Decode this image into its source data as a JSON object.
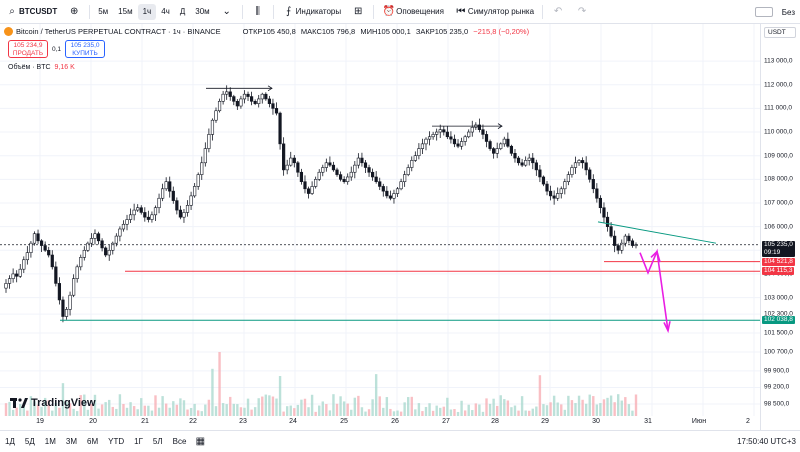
{
  "toolbar": {
    "symbol": "BTCUSDT",
    "intervals": [
      "5м",
      "15м",
      "1ч",
      "4ч",
      "Д",
      "30м"
    ],
    "active_interval": "1ч",
    "indicators_label": "Индикаторы",
    "alerts_label": "Оповещения",
    "replay_label": "Симулятор рынка",
    "right_label": "Без"
  },
  "legend": {
    "title": "Bitcoin / TetherUS PERPETUAL CONTRACT · 1ч · BINANCE",
    "open": "ОТКР105 450,8",
    "high": "МАКС105 796,8",
    "low": "МИН105 000,1",
    "close": "ЗАКР105 235,0",
    "change": "−215,8 (−0,20%)"
  },
  "trade": {
    "sell_price": "105 234,9",
    "sell_label": "ПРОДАТЬ",
    "spread": "0,1",
    "buy_price": "105 235,0",
    "buy_label": "КУПИТЬ"
  },
  "volume": {
    "label": "Объём · BTC",
    "value": "9,16 K"
  },
  "logo_text": "TradingView",
  "price_axis": {
    "currency": "USDT",
    "ticks": [
      "113 000,0",
      "112 000,0",
      "111 000,0",
      "110 000,0",
      "109 000,0",
      "108 000,0",
      "107 000,0",
      "106 000,0",
      "105 000,0",
      "104 000,0",
      "103 000,0",
      "102 300,0",
      "101 500,0",
      "100 700,0",
      "99 900,0",
      "99 200,0",
      "98 500,0"
    ],
    "current_price": "105 235,0",
    "countdown": "09:19",
    "tag_red_1": "104 521,8",
    "tag_red_2": "104 115,3",
    "tag_green": "102 038,8"
  },
  "time_axis": [
    "19",
    "20",
    "21",
    "22",
    "23",
    "24",
    "25",
    "26",
    "27",
    "28",
    "29",
    "30",
    "31",
    "Июн",
    "2"
  ],
  "bottom": {
    "ranges": [
      "1Д",
      "5Д",
      "1М",
      "3М",
      "6М",
      "YTD",
      "1Г",
      "5Л",
      "Все"
    ],
    "clock": "17:50:40 UTC+3"
  },
  "colors": {
    "up": "#ffffff",
    "down": "#131722",
    "support_red": "#f23645",
    "support_green": "#089981",
    "projection": "#e91ee3",
    "trendline": "#089981"
  },
  "chart_data": {
    "type": "candlestick",
    "ylim": [
      98500,
      113300
    ],
    "levels": {
      "red_1": 104521.8,
      "red_2": 104115.3,
      "green": 102038.8,
      "current": 105235.0
    },
    "closes": [
      103600,
      103800,
      104000,
      103900,
      104200,
      104600,
      104900,
      105300,
      105700,
      105400,
      105200,
      105000,
      104800,
      104300,
      103600,
      102900,
      102200,
      102500,
      103100,
      103800,
      104300,
      104700,
      105000,
      105300,
      105500,
      105700,
      105400,
      105100,
      104800,
      105000,
      105300,
      105600,
      105900,
      106100,
      106300,
      106500,
      106700,
      106800,
      106600,
      106400,
      106300,
      106500,
      106800,
      107200,
      107600,
      107900,
      107500,
      107100,
      106700,
      106400,
      106600,
      106900,
      107300,
      107700,
      108200,
      108700,
      109300,
      109900,
      110500,
      110900,
      111300,
      111600,
      111700,
      111500,
      111300,
      111100,
      111400,
      111600,
      111500,
      111300,
      111200,
      111400,
      111600,
      111400,
      111200,
      111000,
      110800,
      109500,
      108400,
      108600,
      108900,
      108700,
      108300,
      107900,
      107600,
      107400,
      107700,
      108000,
      108300,
      108500,
      108700,
      108600,
      108400,
      108200,
      108000,
      107900,
      108100,
      108300,
      108600,
      108900,
      108700,
      108500,
      108300,
      108100,
      107900,
      107700,
      107500,
      107300,
      107200,
      107400,
      107600,
      107900,
      108200,
      108500,
      108800,
      109000,
      109300,
      109500,
      109700,
      109800,
      109900,
      110000,
      110100,
      110000,
      109800,
      109700,
      109500,
      109400,
      109600,
      109800,
      110000,
      110200,
      110300,
      110100,
      109900,
      109600,
      109300,
      109100,
      109300,
      109500,
      109700,
      109400,
      109100,
      108900,
      108700,
      108600,
      108800,
      108900,
      108700,
      108400,
      108100,
      107800,
      107500,
      107300,
      107200,
      107400,
      107600,
      107900,
      108200,
      108500,
      108700,
      108800,
      108700,
      108400,
      108000,
      107600,
      107200,
      106800,
      106400,
      106000,
      105600,
      105200,
      105000,
      105300,
      105600,
      105400,
      105200,
      105235
    ]
  }
}
